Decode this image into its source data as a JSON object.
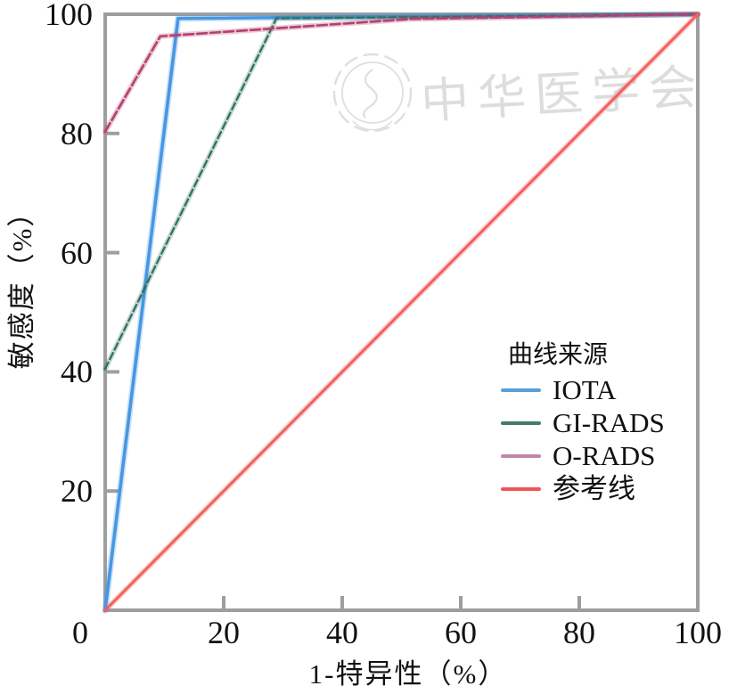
{
  "watermark": {
    "text": "中华医学会",
    "color": "#d8d8d8"
  },
  "axis": {
    "color": "#9e9e9e",
    "text_color": "#111111"
  },
  "chart_data": {
    "type": "line",
    "title": "",
    "xlabel": "1-特异性（%）",
    "ylabel": "敏感度（%）",
    "xlim": [
      0,
      100
    ],
    "ylim": [
      0,
      100
    ],
    "xticks": [
      0,
      20,
      40,
      60,
      80,
      100
    ],
    "yticks": [
      20,
      40,
      60,
      80,
      100
    ],
    "grid": false,
    "legend_title": "曲线来源",
    "legend_position": "inside-right-middle",
    "series": [
      {
        "id": "iota",
        "name": "IOTA",
        "color": "#4697e3",
        "swatch_color": "#56a1dc",
        "style": "solid",
        "dash": "",
        "width": 3.6,
        "points": [
          [
            0,
            0
          ],
          [
            12.3,
            99.3
          ],
          [
            100,
            100
          ]
        ]
      },
      {
        "id": "gi-rads",
        "name": "GI-RADS",
        "color": "#2e6e60",
        "swatch_color": "#447c6c",
        "style": "dashed",
        "dash": "8 4",
        "width": 2.2,
        "points": [
          [
            0,
            40.5
          ],
          [
            28.9,
            99.3
          ],
          [
            100,
            100
          ]
        ]
      },
      {
        "id": "o-rads",
        "name": "O-RADS",
        "color": "#b5406f",
        "swatch_color": "#c285ab",
        "style": "dashed",
        "dash": "11 4",
        "width": 2.6,
        "points": [
          [
            0,
            80.3
          ],
          [
            9.3,
            96.3
          ],
          [
            51.6,
            99.2
          ],
          [
            100,
            100
          ]
        ]
      },
      {
        "id": "reference-line",
        "name": "参考线",
        "color": "#f2605f",
        "swatch_color": "#f0545a",
        "style": "solid",
        "dash": "",
        "width": 3,
        "points": [
          [
            0,
            0
          ],
          [
            100,
            100
          ]
        ]
      }
    ]
  }
}
